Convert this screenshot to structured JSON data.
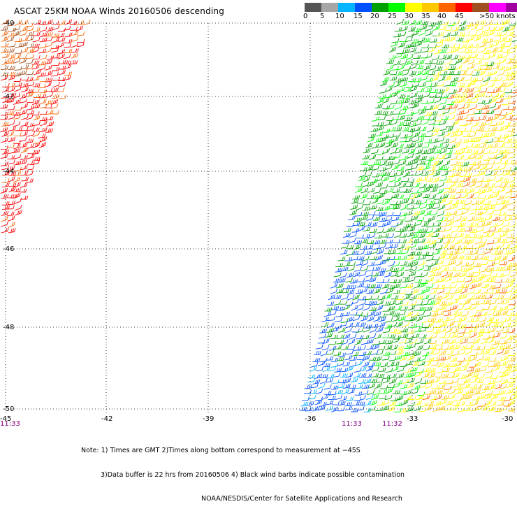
{
  "title": "ASCAT 25KM NOAA Winds 20160506 descending",
  "colorbar": {
    "colors": [
      "#555555",
      "#a6a6a6",
      "#00b4ff",
      "#0050ff",
      "#00a000",
      "#00ff00",
      "#ffff00",
      "#ffc800",
      "#ff6400",
      "#ff0000",
      "#a05020",
      "#ff00ff",
      "#a000a0",
      "#500078"
    ],
    "labels": [
      "0",
      "5",
      "10",
      "15",
      "20",
      "25",
      "30",
      "35",
      "40",
      "45",
      ">50 knots"
    ]
  },
  "axes": {
    "lat_labels": [
      "-40",
      "-42",
      "-44",
      "-46",
      "-48",
      "-50"
    ],
    "lon_labels": [
      "-45",
      "-42",
      "-39",
      "-36",
      "-33",
      "-30"
    ]
  },
  "time_labels": [
    "11:33",
    "11:33",
    "11:32"
  ],
  "notes": [
    "Note: 1) Times are GMT 2)Times along bottom correspond to measurement at −45S",
    "3)Data buffer is 22 hrs from 20160506 4) Black wind barbs indicate possible contamination",
    "NOAA/NESDIS/Center for Satellite Applications and Research"
  ],
  "swaths": [
    {
      "name": "west-swath",
      "dominant_speed_knots": "30-45",
      "colors": [
        "#ff0000",
        "#ff6400",
        "#a05020"
      ]
    },
    {
      "name": "east-swath",
      "dominant_speed_knots": "10-35",
      "colors": [
        "#0050ff",
        "#00a000",
        "#00ff00",
        "#ffff00",
        "#ffc800",
        "#ff6400"
      ]
    }
  ]
}
